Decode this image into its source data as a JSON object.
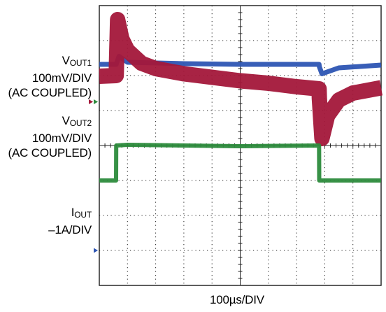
{
  "chart_data": {
    "type": "line",
    "xlabel": "100µs/DIV",
    "grid": true,
    "divisions": {
      "x": 10,
      "y": 8
    },
    "colors": {
      "vout1": "#a3173a",
      "vout2": "#2d55b3",
      "iout": "#2c8b3c",
      "marker_vout1": "#a3173a",
      "marker_vout2": "#2d55b3",
      "marker_iout": "#2c8b3c"
    },
    "labels": {
      "vout1_main": "V",
      "vout1_sub": "OUT1",
      "vout1_scale": "100mV/DIV",
      "vout1_coupling": "(AC COUPLED)",
      "vout2_main": "V",
      "vout2_sub": "OUT2",
      "vout2_scale": "100mV/DIV",
      "vout2_coupling": "(AC COUPLED)",
      "iout_main": "I",
      "iout_sub": "OUT",
      "iout_scale": "–1A/DIV"
    },
    "series": [
      {
        "name": "VOUT1",
        "x": [
          0,
          0.6,
          0.61,
          0.65,
          0.8,
          1.0,
          1.5,
          2.0,
          3.0,
          4.0,
          5.0,
          6.0,
          7.0,
          7.8,
          7.81,
          7.9,
          8.1,
          8.5,
          9.0,
          10.0
        ],
        "y": [
          1.98,
          2.0,
          2.35,
          3.6,
          3.05,
          2.72,
          2.35,
          2.2,
          2.05,
          1.95,
          1.85,
          1.78,
          1.68,
          1.62,
          1.35,
          0.2,
          0.85,
          1.3,
          1.5,
          1.65
        ]
      },
      {
        "name": "VOUT2",
        "x": [
          0,
          0.6,
          0.61,
          0.7,
          1.0,
          3.0,
          5.0,
          7.8,
          7.81,
          7.9,
          8.5,
          10.0
        ],
        "y": [
          2.32,
          2.32,
          2.35,
          2.55,
          2.38,
          2.34,
          2.32,
          2.32,
          2.25,
          2.05,
          2.22,
          2.3
        ]
      },
      {
        "name": "IOUT",
        "x": [
          0,
          0.595,
          0.6,
          1.0,
          3.0,
          5.0,
          7.8,
          7.805,
          10.0
        ],
        "y": [
          -1.0,
          -1.0,
          0.0,
          0.02,
          0.0,
          -0.02,
          0.0,
          -1.0,
          -1.0
        ]
      }
    ]
  }
}
